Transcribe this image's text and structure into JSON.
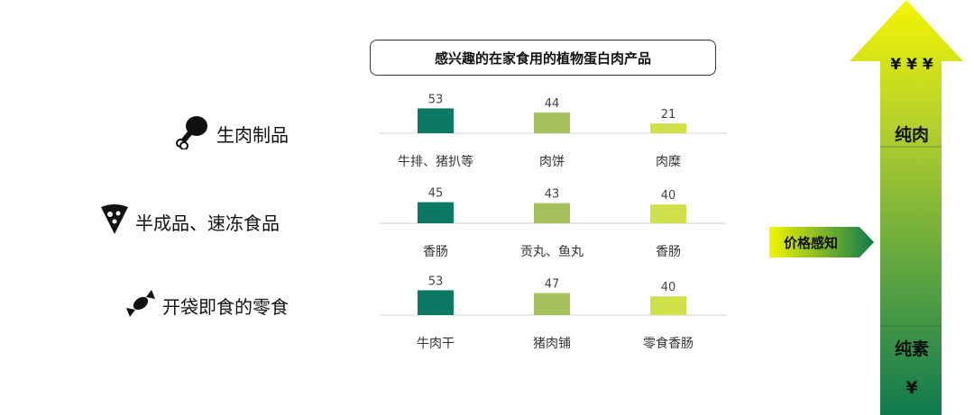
{
  "categories": [
    {
      "label": "生肉制品",
      "icon": "drumstick-icon"
    },
    {
      "label": "半成品、速冻食品",
      "icon": "pizza-slice-icon"
    },
    {
      "label": "开袋即食的零食",
      "icon": "candy-icon"
    }
  ],
  "colors": {
    "bar1": "#0c7a63",
    "bar2": "#a6c05c",
    "bar3": "#cfe04a",
    "arrowTop": "#f3f500",
    "arrowBottom": "#0e7a4e"
  },
  "chart_data": {
    "type": "bar",
    "title": "感兴趣的在家食用的植物蛋白肉产品",
    "groups": [
      {
        "name": "生肉制品",
        "categories": [
          "牛排、猪扒等",
          "肉饼",
          "肉糜"
        ],
        "values": [
          53,
          44,
          21
        ]
      },
      {
        "name": "半成品、速冻食品",
        "categories": [
          "香肠",
          "贡丸、鱼丸",
          "香肠"
        ],
        "values": [
          45,
          43,
          40
        ]
      },
      {
        "name": "开袋即食的零食",
        "categories": [
          "牛肉干",
          "猪肉铺",
          "零食香肠"
        ],
        "values": [
          53,
          47,
          40
        ]
      }
    ]
  },
  "arrow": {
    "top_symbol": "¥ ¥ ¥",
    "top_label": "纯肉",
    "bottom_label": "纯素",
    "bottom_symbol": "¥"
  },
  "perception_label": "价格感知"
}
